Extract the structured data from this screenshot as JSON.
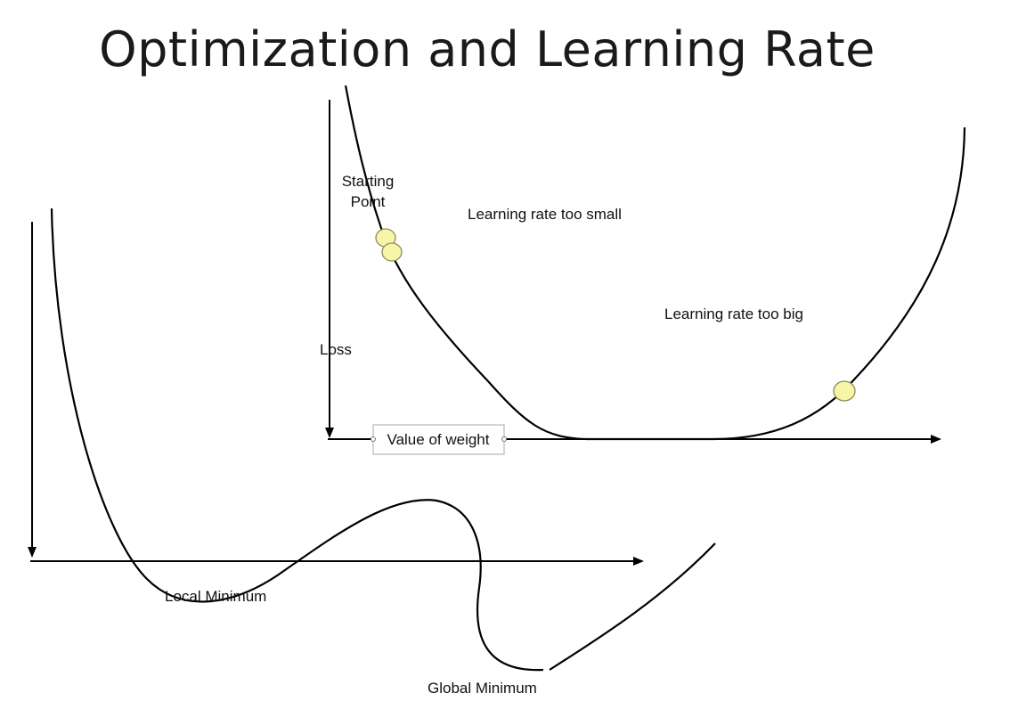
{
  "title": "Optimization and Learning Rate",
  "labels": {
    "starting_point_line1": "Starting",
    "starting_point_line2": "Point",
    "learning_rate_small": "Learning rate too small",
    "learning_rate_big": "Learning rate too big",
    "loss": "Loss",
    "value_of_weight": "Value of weight",
    "local_minimum": "Local  Minimum",
    "global_minimum": "Global  Minimum"
  },
  "colors": {
    "point_fill": "#f7f5a8",
    "point_stroke": "#8a8a5a",
    "line": "#000000"
  }
}
